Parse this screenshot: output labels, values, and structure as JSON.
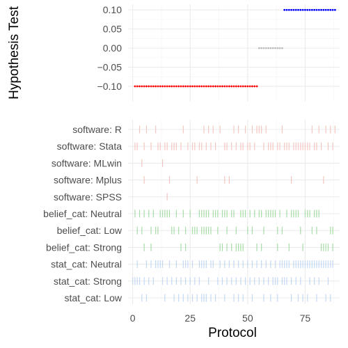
{
  "chart_data": {
    "x_axis": {
      "title": "Protocol",
      "range": [
        -2,
        90
      ],
      "ticks": [
        0,
        25,
        50,
        75
      ],
      "tick_labels": [
        "0",
        "25",
        "50",
        "75"
      ]
    },
    "panels": [
      {
        "type": "scatter",
        "y_axis": {
          "title": "Hypothesis Test",
          "range": [
            -0.14,
            0.115
          ],
          "ticks": [
            -0.1,
            -0.05,
            0.0,
            0.05,
            0.1
          ],
          "tick_labels": [
            "-0.10",
            "-0.05",
            "0.00",
            "0.05",
            "0.10"
          ]
        },
        "series": [
          {
            "y": -0.1,
            "x_from": 1,
            "x_to": 54,
            "color": "#ff0000"
          },
          {
            "y": 0.0,
            "x_from": 55,
            "x_to": 65,
            "color": "#bebebe"
          },
          {
            "y": 0.1,
            "x_from": 66,
            "x_to": 88,
            "color": "#0000ff"
          }
        ]
      },
      {
        "type": "rug",
        "categories": [
          {
            "label": "software: R",
            "color": "#f4c6c1",
            "x": [
              3,
              6,
              10,
              22,
              31,
              33,
              35,
              38,
              44,
              46,
              49,
              52,
              54,
              55,
              56,
              58,
              65,
              78,
              81,
              84,
              86,
              88
            ]
          },
          {
            "label": "software: Stata",
            "color": "#f4c6c1",
            "x": [
              1,
              2,
              5,
              8,
              11,
              12,
              14,
              15,
              17,
              18,
              19,
              21,
              24,
              26,
              27,
              29,
              30,
              32,
              34,
              36,
              40,
              41,
              43,
              45,
              47,
              48,
              50,
              51,
              53,
              57,
              59,
              60,
              61,
              63,
              64,
              66,
              67,
              68,
              70,
              71,
              72,
              73,
              74,
              75,
              76,
              77,
              79,
              80,
              82,
              85,
              87
            ]
          },
          {
            "label": "software: MLwin",
            "color": "#f4c6c1",
            "x": [
              4,
              13
            ]
          },
          {
            "label": "software: Mplus",
            "color": "#f4c6c1",
            "x": [
              5,
              16,
              28,
              40,
              42,
              69,
              83
            ]
          },
          {
            "label": "software: SPSS",
            "color": "#f4c6c1",
            "x": [
              15
            ]
          },
          {
            "label": "belief_cat: Neutral",
            "color": "#a8dca8",
            "x": [
              1,
              3,
              5,
              7,
              9,
              12,
              13,
              14,
              15,
              16,
              19,
              22,
              25,
              29,
              30,
              31,
              32,
              33,
              35,
              36,
              37,
              39,
              40,
              41,
              43,
              44,
              47,
              48,
              49,
              51,
              53,
              55,
              56,
              58,
              59,
              60,
              61,
              62,
              64,
              67,
              69,
              70,
              71,
              72,
              75,
              76,
              77,
              79,
              80,
              81
            ]
          },
          {
            "label": "belief_cat: Low",
            "color": "#a8dca8",
            "x": [
              2,
              4,
              8,
              10,
              11,
              17,
              18,
              20,
              23,
              26,
              27,
              28,
              30,
              31,
              32,
              33,
              34,
              37,
              41,
              45,
              50,
              52,
              57,
              63,
              65,
              73,
              78,
              80,
              86,
              87
            ]
          },
          {
            "label": "belief_cat: Strong",
            "color": "#a8dca8",
            "x": [
              5,
              8,
              21,
              23,
              38,
              39,
              41,
              43,
              45,
              46,
              47,
              48,
              54,
              56,
              63,
              68,
              74,
              82,
              83,
              84,
              85,
              87
            ]
          },
          {
            "label": "stat_cat: Neutral",
            "color": "#c4d8f4",
            "x": [
              2,
              6,
              8,
              10,
              11,
              12,
              13,
              16,
              19,
              22,
              23,
              24,
              26,
              29,
              30,
              31,
              32,
              34,
              35,
              38,
              40,
              42,
              44,
              46,
              48,
              50,
              52,
              54,
              56,
              58,
              60,
              62,
              64,
              65,
              66,
              67,
              68,
              70,
              71,
              72,
              73,
              74,
              75,
              76,
              77,
              78,
              79,
              80,
              81,
              82,
              83,
              84,
              85,
              86,
              87
            ]
          },
          {
            "label": "stat_cat: Strong",
            "color": "#c4d8f4",
            "x": [
              0,
              1,
              2,
              3,
              5,
              7,
              9,
              13,
              15,
              17,
              19,
              21,
              23,
              25,
              27,
              29,
              33,
              37,
              39,
              41,
              43,
              45,
              47,
              49,
              51,
              53,
              55,
              57,
              59,
              61,
              62,
              63,
              65,
              66,
              67,
              69,
              71,
              73,
              77,
              79,
              81,
              85
            ]
          },
          {
            "label": "stat_cat: Low",
            "color": "#c4d8f4",
            "x": [
              4,
              6,
              14,
              18,
              20,
              22,
              24,
              26,
              28,
              30,
              31,
              32,
              34,
              36,
              40,
              44,
              46,
              48,
              52,
              57,
              60,
              63,
              69,
              72,
              74,
              76,
              80,
              84,
              86
            ]
          }
        ]
      }
    ],
    "grid": true,
    "legend": "none"
  }
}
